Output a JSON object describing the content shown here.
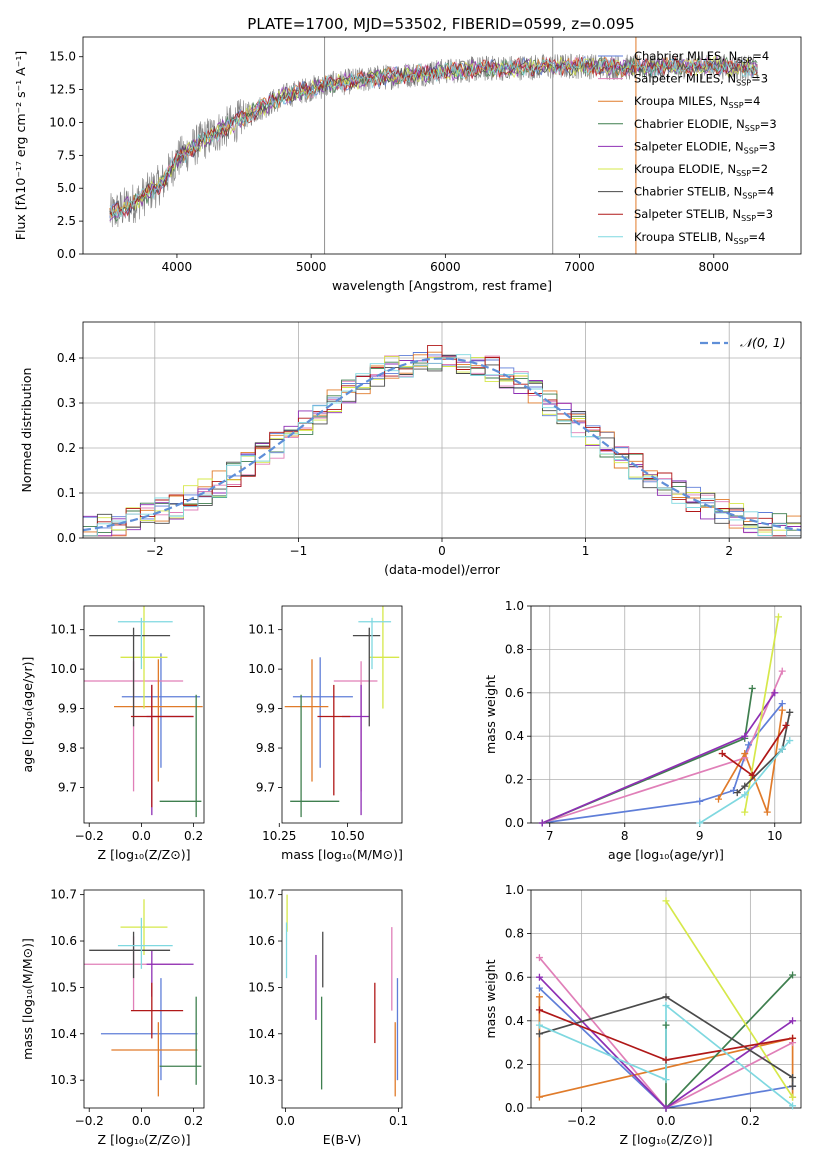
{
  "page": {
    "title": "PLATE=1700, MJD=53502, FIBERID=0599, z=0.095"
  },
  "colors": {
    "Chabrier MILES": "#5f7ed8",
    "Salpeter MILES": "#e07fb8",
    "Kroupa MILES": "#e07b2a",
    "Chabrier ELODIE": "#3f7f4f",
    "Salpeter ELODIE": "#8e2fb4",
    "Kroupa ELODIE": "#d6e84a",
    "Chabrier STELIB": "#4a4a4a",
    "Salpeter STELIB": "#b01818",
    "Kroupa STELIB": "#7fd8e0",
    "gaussian": "#5f8fd8",
    "grid": "#b0b0b0"
  },
  "chart_data": [
    {
      "type": "line",
      "id": "spectrum",
      "title": "PLATE=1700, MJD=53502, FIBERID=0599, z=0.095",
      "xlabel": "wavelength [Angstrom, rest frame]",
      "ylabel": "Flux [fλ10⁻¹⁷ erg cm⁻² s⁻¹ A⁻¹]",
      "xlim": [
        3300,
        8650
      ],
      "ylim": [
        0,
        16.5
      ],
      "xticks": [
        4000,
        5000,
        6000,
        7000,
        8000
      ],
      "yticks": [
        0.0,
        2.5,
        5.0,
        7.5,
        10.0,
        12.5,
        15.0
      ],
      "legend": [
        "Chabrier MILES, N_SSP=4",
        "Salpeter MILES, N_SSP=3",
        "Kroupa MILES, N_SSP=4",
        "Chabrier ELODIE, N_SSP=3",
        "Salpeter ELODIE, N_SSP=3",
        "Kroupa ELODIE, N_SSP=2",
        "Chabrier STELIB, N_SSP=4",
        "Salpeter STELIB, N_SSP=3",
        "Kroupa STELIB, N_SSP=4"
      ],
      "legend_location": "right",
      "continuum": {
        "x": [
          3500,
          3700,
          3900,
          4000,
          4200,
          4400,
          4600,
          4800,
          5000,
          5200,
          5500,
          5800,
          6000,
          6300,
          6600,
          7000,
          7300,
          7500,
          8000,
          8300
        ],
        "y": [
          3.0,
          4.0,
          5.5,
          7.2,
          8.7,
          9.8,
          11.0,
          12.0,
          12.6,
          13.0,
          13.4,
          13.7,
          13.9,
          14.1,
          14.2,
          14.3,
          14.2,
          14.2,
          14.3,
          14.1
        ]
      },
      "data_range": [
        3500,
        8330
      ],
      "spikes": [
        5100,
        6800,
        7420
      ]
    },
    {
      "type": "area",
      "id": "residuals",
      "xlabel": "(data-model)/error",
      "ylabel": "Normed distribution",
      "xlim": [
        -2.5,
        2.5
      ],
      "ylim": [
        0,
        0.48
      ],
      "xticks": [
        -2,
        -1,
        0,
        1,
        2
      ],
      "yticks": [
        0.0,
        0.1,
        0.2,
        0.3,
        0.4
      ],
      "legend": [
        "𝒩(0, 1)"
      ],
      "legend_location": "top-right",
      "bins": {
        "start": -2.5,
        "width": 0.1,
        "count": 50
      }
    },
    {
      "type": "scatter",
      "id": "age-vs-Z",
      "xlabel": "Z [log₁₀(Z/Z⊙)]",
      "ylabel": "age  [log₁₀(age/yr)]",
      "xlim": [
        -0.22,
        0.24
      ],
      "ylim": [
        9.61,
        10.16
      ],
      "xticks": [
        -0.2,
        0.0,
        0.2
      ],
      "yticks": [
        9.7,
        9.8,
        9.9,
        10.0,
        10.1
      ],
      "points": [
        {
          "name": "Chabrier MILES",
          "x": 0.075,
          "y": 9.93,
          "xerr": [
            0.15,
            0.15
          ],
          "yerr": [
            0.18,
            0.11
          ]
        },
        {
          "name": "Salpeter MILES",
          "x": -0.03,
          "y": 9.97,
          "xerr": [
            0.19,
            0.19
          ],
          "yerr": [
            0.28,
            0.05
          ]
        },
        {
          "name": "Kroupa MILES",
          "x": 0.065,
          "y": 9.905,
          "xerr": [
            0.17,
            0.17
          ],
          "yerr": [
            0.19,
            0.12
          ]
        },
        {
          "name": "Chabrier ELODIE",
          "x": 0.21,
          "y": 9.665,
          "xerr": [
            0.14,
            0.02
          ],
          "yerr": [
            0.04,
            0.27
          ]
        },
        {
          "name": "Salpeter ELODIE",
          "x": 0.04,
          "y": 9.88,
          "xerr": [
            0.02,
            0.16
          ],
          "yerr": [
            0.25,
            0.08
          ]
        },
        {
          "name": "Kroupa ELODIE",
          "x": 0.01,
          "y": 10.03,
          "xerr": [
            0.09,
            0.09
          ],
          "yerr": [
            0.13,
            0.13
          ]
        },
        {
          "name": "Chabrier STELIB",
          "x": -0.03,
          "y": 10.085,
          "xerr": [
            0.17,
            0.14
          ],
          "yerr": [
            0.23,
            0.02
          ]
        },
        {
          "name": "Salpeter STELIB",
          "x": 0.04,
          "y": 9.88,
          "xerr": [
            0.08,
            0.16
          ],
          "yerr": [
            0.23,
            0.08
          ]
        },
        {
          "name": "Kroupa STELIB",
          "x": 0.0,
          "y": 10.12,
          "xerr": [
            0.09,
            0.12
          ],
          "yerr": [
            0.12,
            0.01
          ]
        }
      ]
    },
    {
      "type": "scatter",
      "id": "age-vs-mass",
      "xlabel": "mass [log₁₀(M/M⊙)]",
      "ylabel": "",
      "xlim": [
        10.26,
        10.7
      ],
      "ylim": [
        9.61,
        10.16
      ],
      "xticks": [
        10.25,
        10.5
      ],
      "yticks": [
        9.7,
        9.8,
        9.9,
        10.0,
        10.1
      ],
      "points": [
        {
          "name": "Chabrier MILES",
          "x": 10.4,
          "y": 9.93,
          "xerr": [
            0.1,
            0.12
          ],
          "yerr": [
            0.18,
            0.1
          ]
        },
        {
          "name": "Salpeter MILES",
          "x": 10.55,
          "y": 9.97,
          "xerr": [
            0.1,
            0.06
          ],
          "yerr": [
            0.28,
            0.05
          ]
        },
        {
          "name": "Kroupa MILES",
          "x": 10.37,
          "y": 9.905,
          "xerr": [
            0.1,
            0.06
          ],
          "yerr": [
            0.19,
            0.12
          ]
        },
        {
          "name": "Chabrier ELODIE",
          "x": 10.33,
          "y": 9.665,
          "xerr": [
            0.04,
            0.14
          ],
          "yerr": [
            0.04,
            0.27
          ]
        },
        {
          "name": "Salpeter ELODIE",
          "x": 10.55,
          "y": 9.88,
          "xerr": [
            0.07,
            0.03
          ],
          "yerr": [
            0.25,
            0.08
          ]
        },
        {
          "name": "Kroupa ELODIE",
          "x": 10.63,
          "y": 10.03,
          "xerr": [
            0.05,
            0.06
          ],
          "yerr": [
            0.13,
            0.13
          ]
        },
        {
          "name": "Chabrier STELIB",
          "x": 10.58,
          "y": 10.085,
          "xerr": [
            0.06,
            0.04
          ],
          "yerr": [
            0.23,
            0.02
          ]
        },
        {
          "name": "Salpeter STELIB",
          "x": 10.45,
          "y": 9.88,
          "xerr": [
            0.06,
            0.06
          ],
          "yerr": [
            0.2,
            0.08
          ]
        },
        {
          "name": "Kroupa STELIB",
          "x": 10.59,
          "y": 10.12,
          "xerr": [
            0.05,
            0.07
          ],
          "yerr": [
            0.12,
            0.01
          ]
        }
      ]
    },
    {
      "type": "line",
      "id": "weight-vs-age",
      "xlabel": "age  [log₁₀(age/yr)]",
      "ylabel": "mass weight",
      "xlim": [
        6.75,
        10.35
      ],
      "ylim": [
        0,
        1.0
      ],
      "xticks": [
        7,
        8,
        9,
        10
      ],
      "yticks": [
        0.0,
        0.2,
        0.4,
        0.6,
        0.8,
        1.0
      ],
      "series": [
        {
          "name": "Chabrier MILES",
          "points": [
            [
              6.9,
              0.0
            ],
            [
              9.0,
              0.1
            ],
            [
              9.45,
              0.15
            ],
            [
              9.65,
              0.36
            ],
            [
              10.1,
              0.55
            ]
          ]
        },
        {
          "name": "Salpeter MILES",
          "points": [
            [
              6.9,
              0.0
            ],
            [
              9.6,
              0.3
            ],
            [
              10.1,
              0.7
            ]
          ]
        },
        {
          "name": "Kroupa MILES",
          "points": [
            [
              9.25,
              0.11
            ],
            [
              9.6,
              0.32
            ],
            [
              9.9,
              0.05
            ],
            [
              10.1,
              0.52
            ]
          ]
        },
        {
          "name": "Chabrier ELODIE",
          "points": [
            [
              6.9,
              0.0
            ],
            [
              9.6,
              0.39
            ],
            [
              9.7,
              0.62
            ]
          ]
        },
        {
          "name": "Salpeter ELODIE",
          "points": [
            [
              6.9,
              0.0
            ],
            [
              9.6,
              0.4
            ],
            [
              10.0,
              0.6
            ]
          ]
        },
        {
          "name": "Kroupa ELODIE",
          "points": [
            [
              9.6,
              0.05
            ],
            [
              10.05,
              0.95
            ]
          ]
        },
        {
          "name": "Chabrier STELIB",
          "points": [
            [
              9.5,
              0.14
            ],
            [
              9.6,
              0.17
            ],
            [
              10.1,
              0.34
            ],
            [
              10.2,
              0.51
            ]
          ]
        },
        {
          "name": "Salpeter STELIB",
          "points": [
            [
              9.3,
              0.32
            ],
            [
              9.7,
              0.22
            ],
            [
              10.15,
              0.45
            ]
          ]
        },
        {
          "name": "Kroupa STELIB",
          "points": [
            [
              9.0,
              0.0
            ],
            [
              9.6,
              0.13
            ],
            [
              10.1,
              0.34
            ],
            [
              10.2,
              0.38
            ]
          ]
        }
      ]
    },
    {
      "type": "scatter",
      "id": "mass-vs-Z",
      "xlabel": "Z [log₁₀(Z/Z⊙)]",
      "ylabel": "mass [log₁₀(M/M⊙)]",
      "xlim": [
        -0.22,
        0.24
      ],
      "ylim": [
        10.24,
        10.71
      ],
      "xticks": [
        -0.2,
        0.0,
        0.2
      ],
      "yticks": [
        10.3,
        10.4,
        10.5,
        10.6,
        10.7
      ],
      "points": [
        {
          "name": "Chabrier MILES",
          "x": 0.075,
          "y": 10.4,
          "xerr": [
            0.23,
            0.14
          ],
          "yerr": [
            0.1,
            0.12
          ]
        },
        {
          "name": "Salpeter MILES",
          "x": -0.03,
          "y": 10.55,
          "xerr": [
            0.19,
            0.18
          ],
          "yerr": [
            0.1,
            0.06
          ]
        },
        {
          "name": "Kroupa MILES",
          "x": 0.065,
          "y": 10.365,
          "xerr": [
            0.18,
            0.15
          ],
          "yerr": [
            0.1,
            0.06
          ]
        },
        {
          "name": "Chabrier ELODIE",
          "x": 0.21,
          "y": 10.33,
          "xerr": [
            0.14,
            0.02
          ],
          "yerr": [
            0.04,
            0.15
          ]
        },
        {
          "name": "Salpeter ELODIE",
          "x": 0.04,
          "y": 10.55,
          "xerr": [
            0.02,
            0.16
          ],
          "yerr": [
            0.07,
            0.03
          ]
        },
        {
          "name": "Kroupa ELODIE",
          "x": 0.01,
          "y": 10.63,
          "xerr": [
            0.09,
            0.09
          ],
          "yerr": [
            0.06,
            0.06
          ]
        },
        {
          "name": "Chabrier STELIB",
          "x": -0.03,
          "y": 10.58,
          "xerr": [
            0.17,
            0.14
          ],
          "yerr": [
            0.06,
            0.04
          ]
        },
        {
          "name": "Salpeter STELIB",
          "x": 0.04,
          "y": 10.45,
          "xerr": [
            0.08,
            0.12
          ],
          "yerr": [
            0.06,
            0.06
          ]
        },
        {
          "name": "Kroupa STELIB",
          "x": 0.0,
          "y": 10.59,
          "xerr": [
            0.09,
            0.12
          ],
          "yerr": [
            0.05,
            0.06
          ]
        }
      ]
    },
    {
      "type": "scatter",
      "id": "mass-vs-EBV",
      "xlabel": "E(B-V)",
      "ylabel": "",
      "xlim": [
        -0.003,
        0.103
      ],
      "ylim": [
        10.24,
        10.71
      ],
      "xticks": [
        0.0,
        0.1
      ],
      "yticks": [
        10.3,
        10.4,
        10.5,
        10.6,
        10.7
      ],
      "points": [
        {
          "name": "Chabrier MILES",
          "x": 0.099,
          "y": 10.4,
          "yerr": [
            0.1,
            0.12
          ]
        },
        {
          "name": "Salpeter MILES",
          "x": 0.094,
          "y": 10.55,
          "yerr": [
            0.1,
            0.08
          ]
        },
        {
          "name": "Kroupa MILES",
          "x": 0.097,
          "y": 10.365,
          "yerr": [
            0.1,
            0.06
          ]
        },
        {
          "name": "Chabrier ELODIE",
          "x": 0.032,
          "y": 10.38,
          "yerr": [
            0.1,
            0.1
          ]
        },
        {
          "name": "Salpeter ELODIE",
          "x": 0.027,
          "y": 10.5,
          "yerr": [
            0.07,
            0.07
          ]
        },
        {
          "name": "Kroupa ELODIE",
          "x": 0.0015,
          "y": 10.66,
          "yerr": [
            0.04,
            0.04
          ]
        },
        {
          "name": "Chabrier STELIB",
          "x": 0.033,
          "y": 10.56,
          "yerr": [
            0.06,
            0.06
          ]
        },
        {
          "name": "Salpeter STELIB",
          "x": 0.079,
          "y": 10.44,
          "yerr": [
            0.06,
            0.07
          ]
        },
        {
          "name": "Kroupa STELIB",
          "x": 0.001,
          "y": 10.58,
          "yerr": [
            0.06,
            0.06
          ]
        }
      ]
    },
    {
      "type": "line",
      "id": "weight-vs-Z",
      "xlabel": "Z [log₁₀(Z/Z⊙)]",
      "ylabel": "mass weight",
      "xlim": [
        -0.32,
        0.32
      ],
      "ylim": [
        0,
        1.0
      ],
      "xticks": [
        -0.2,
        0.0,
        0.2
      ],
      "yticks": [
        0.0,
        0.2,
        0.4,
        0.6,
        0.8,
        1.0
      ],
      "series": [
        {
          "name": "Chabrier MILES",
          "points": [
            [
              -0.3,
              0.55
            ],
            [
              0.0,
              0.0
            ],
            [
              0.3,
              0.1
            ]
          ]
        },
        {
          "name": "Salpeter MILES",
          "points": [
            [
              -0.3,
              0.69
            ],
            [
              0.0,
              0.0
            ],
            [
              0.3,
              0.3
            ]
          ]
        },
        {
          "name": "Kroupa MILES",
          "points": [
            [
              -0.3,
              0.51
            ],
            [
              -0.3,
              0.05
            ],
            [
              0.3,
              0.32
            ],
            [
              0.3,
              0.05
            ]
          ]
        },
        {
          "name": "Chabrier ELODIE",
          "points": [
            [
              0.0,
              0.38
            ],
            [
              0.0,
              0.0
            ],
            [
              0.3,
              0.61
            ]
          ]
        },
        {
          "name": "Salpeter ELODIE",
          "points": [
            [
              -0.3,
              0.6
            ],
            [
              0.0,
              0.0
            ],
            [
              0.3,
              0.4
            ]
          ]
        },
        {
          "name": "Kroupa ELODIE",
          "points": [
            [
              0.0,
              0.95
            ],
            [
              0.3,
              0.05
            ]
          ]
        },
        {
          "name": "Chabrier STELIB",
          "points": [
            [
              -0.3,
              0.34
            ],
            [
              0.0,
              0.51
            ],
            [
              0.3,
              0.14
            ],
            [
              0.3,
              0.1
            ]
          ]
        },
        {
          "name": "Salpeter STELIB",
          "points": [
            [
              -0.3,
              0.45
            ],
            [
              0.0,
              0.22
            ],
            [
              0.3,
              0.32
            ]
          ]
        },
        {
          "name": "Kroupa STELIB",
          "points": [
            [
              -0.3,
              0.38
            ],
            [
              0.0,
              0.13
            ],
            [
              0.0,
              0.47
            ],
            [
              0.3,
              0.01
            ]
          ]
        }
      ]
    }
  ]
}
